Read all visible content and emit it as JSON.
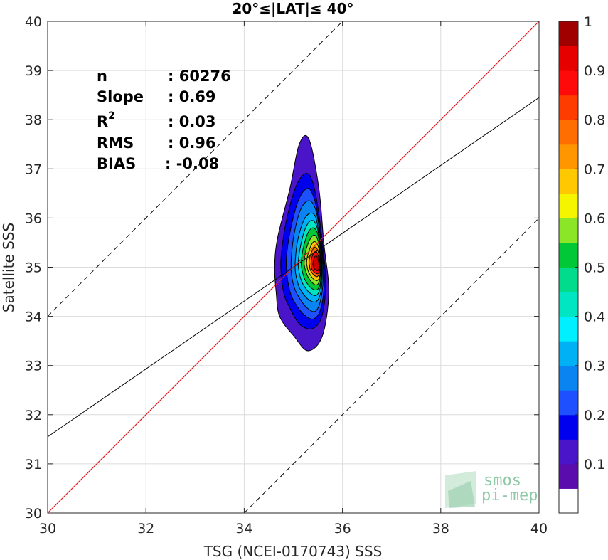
{
  "chart_data": {
    "type": "heatmap",
    "title": "20°≤|LAT|≤ 40°",
    "xlabel": "TSG (NCEI-0170743) SSS",
    "ylabel": "Satellite SSS",
    "xlim": [
      30,
      40
    ],
    "ylim": [
      30,
      40
    ],
    "x_ticks": [
      "30",
      "32",
      "34",
      "36",
      "38",
      "40"
    ],
    "y_ticks": [
      "30",
      "31",
      "32",
      "33",
      "34",
      "35",
      "36",
      "37",
      "38",
      "39",
      "40"
    ],
    "grid": true,
    "density_peak": {
      "x": 35.45,
      "y": 35.1
    },
    "stats": [
      {
        "label": "n",
        "value": ": 60276"
      },
      {
        "label": "Slope",
        "value": ": 0.69"
      },
      {
        "label": "R",
        "sup": "2",
        "value": ": 0.03"
      },
      {
        "label": "RMS",
        "value": ": 0.96"
      },
      {
        "label": "BIAS",
        "value": ": -0.08"
      }
    ],
    "lines": {
      "identity": {
        "slope": 1,
        "intercept": 0,
        "color": "#e41a1c"
      },
      "regression": {
        "slope": 0.69,
        "y_at_30": 31.55,
        "color": "#000000"
      },
      "upper_bound": {
        "offset": 4,
        "style": "dashed",
        "color": "#000000"
      },
      "lower_bound": {
        "offset": -4,
        "style": "dashed",
        "color": "#000000"
      }
    },
    "colorbar": {
      "range": [
        0,
        1
      ],
      "ticks": [
        "0.1",
        "0.2",
        "0.3",
        "0.4",
        "0.5",
        "0.6",
        "0.7",
        "0.8",
        "0.9",
        "1"
      ],
      "levels": [
        {
          "from": 0.0,
          "to": 0.05,
          "color": "#ffffff"
        },
        {
          "from": 0.05,
          "to": 0.1,
          "color": "#5a0cad"
        },
        {
          "from": 0.1,
          "to": 0.15,
          "color": "#4a14c8"
        },
        {
          "from": 0.15,
          "to": 0.2,
          "color": "#0000ee"
        },
        {
          "from": 0.2,
          "to": 0.25,
          "color": "#1e50ff"
        },
        {
          "from": 0.25,
          "to": 0.3,
          "color": "#0a84f0"
        },
        {
          "from": 0.3,
          "to": 0.35,
          "color": "#00b2f5"
        },
        {
          "from": 0.35,
          "to": 0.4,
          "color": "#00f0ff"
        },
        {
          "from": 0.4,
          "to": 0.45,
          "color": "#00e6c3"
        },
        {
          "from": 0.45,
          "to": 0.5,
          "color": "#00dc8c"
        },
        {
          "from": 0.5,
          "to": 0.55,
          "color": "#00c837"
        },
        {
          "from": 0.55,
          "to": 0.6,
          "color": "#8ce628"
        },
        {
          "from": 0.6,
          "to": 0.65,
          "color": "#f5f500"
        },
        {
          "from": 0.65,
          "to": 0.7,
          "color": "#ffc800"
        },
        {
          "from": 0.7,
          "to": 0.75,
          "color": "#ff9600"
        },
        {
          "from": 0.75,
          "to": 0.8,
          "color": "#ff6e00"
        },
        {
          "from": 0.8,
          "to": 0.85,
          "color": "#ff3c00"
        },
        {
          "from": 0.85,
          "to": 0.9,
          "color": "#ff0a0a"
        },
        {
          "from": 0.9,
          "to": 0.95,
          "color": "#e60000"
        },
        {
          "from": 0.95,
          "to": 1.0,
          "color": "#a00000"
        }
      ]
    },
    "contours": [
      {
        "level": 0.05,
        "color": "#4a14c8",
        "x": [
          34.72,
          35.01,
          35.3,
          35.59,
          35.72,
          35.62,
          35.52,
          35.32,
          35.12,
          34.93,
          34.68,
          34.62,
          34.65
        ],
        "y": [
          34.0,
          33.6,
          33.3,
          33.6,
          34.5,
          35.5,
          36.6,
          37.6,
          37.5,
          36.6,
          35.6,
          35.0,
          34.5
        ]
      },
      {
        "level": 0.1,
        "color": "#0000ee",
        "x": [
          34.89,
          35.12,
          35.38,
          35.58,
          35.66,
          35.58,
          35.45,
          35.3,
          35.08,
          34.87,
          34.76,
          34.75,
          34.8
        ],
        "y": [
          34.25,
          33.85,
          33.75,
          34.0,
          34.7,
          35.6,
          36.5,
          36.9,
          36.7,
          36.0,
          35.3,
          34.9,
          34.5
        ]
      },
      {
        "level": 0.15,
        "color": "#1e50ff",
        "x": [
          34.99,
          35.2,
          35.42,
          35.57,
          35.63,
          35.56,
          35.45,
          35.31,
          35.12,
          34.95,
          34.86,
          34.87,
          34.92
        ],
        "y": [
          34.35,
          34.05,
          33.95,
          34.2,
          34.8,
          35.6,
          36.3,
          36.6,
          36.4,
          35.8,
          35.2,
          34.85,
          34.55
        ]
      },
      {
        "level": 0.2,
        "color": "#0a84f0",
        "x": [
          35.08,
          35.25,
          35.44,
          35.56,
          35.61,
          35.55,
          35.46,
          35.33,
          35.16,
          35.02,
          34.96,
          34.96,
          35.0
        ],
        "y": [
          34.45,
          34.2,
          34.1,
          34.35,
          34.9,
          35.6,
          36.15,
          36.35,
          36.2,
          35.7,
          35.2,
          34.9,
          34.65
        ]
      },
      {
        "level": 0.3,
        "color": "#00b2f5",
        "x": [
          35.14,
          35.3,
          35.46,
          35.56,
          35.59,
          35.54,
          35.46,
          35.35,
          35.21,
          35.09,
          35.04,
          35.04,
          35.08
        ],
        "y": [
          34.55,
          34.35,
          34.3,
          34.5,
          35.0,
          35.55,
          36.0,
          36.1,
          35.95,
          35.55,
          35.15,
          34.92,
          34.72
        ]
      },
      {
        "level": 0.35,
        "color": "#00e6c3",
        "x": [
          35.2,
          35.33,
          35.47,
          35.55,
          35.58,
          35.54,
          35.47,
          35.37,
          35.25,
          35.15,
          35.1,
          35.11,
          35.14
        ],
        "y": [
          34.65,
          34.48,
          34.43,
          34.6,
          35.03,
          35.5,
          35.85,
          35.95,
          35.8,
          35.45,
          35.1,
          34.95,
          34.8
        ]
      },
      {
        "level": 0.45,
        "color": "#00c837",
        "x": [
          35.25,
          35.36,
          35.48,
          35.55,
          35.57,
          35.54,
          35.48,
          35.39,
          35.29,
          35.2,
          35.16,
          35.17,
          35.2
        ],
        "y": [
          34.72,
          34.58,
          34.54,
          34.68,
          35.05,
          35.45,
          35.72,
          35.8,
          35.68,
          35.38,
          35.1,
          34.98,
          34.85
        ]
      },
      {
        "level": 0.55,
        "color": "#8ce628",
        "x": [
          35.3,
          35.39,
          35.48,
          35.54,
          35.56,
          35.53,
          35.48,
          35.41,
          35.33,
          35.25,
          35.22,
          35.23,
          35.26
        ],
        "y": [
          34.8,
          34.68,
          34.64,
          34.76,
          35.07,
          35.4,
          35.6,
          35.65,
          35.55,
          35.32,
          35.1,
          35.0,
          34.9
        ]
      },
      {
        "level": 0.65,
        "color": "#ffc800",
        "x": [
          35.34,
          35.41,
          35.49,
          35.54,
          35.55,
          35.53,
          35.48,
          35.42,
          35.36,
          35.3,
          35.27,
          35.28,
          35.3
        ],
        "y": [
          34.85,
          34.76,
          34.73,
          34.83,
          35.08,
          35.33,
          35.48,
          35.52,
          35.44,
          35.27,
          35.1,
          35.02,
          34.93
        ]
      },
      {
        "level": 0.75,
        "color": "#ff6e00",
        "x": [
          35.37,
          35.43,
          35.49,
          35.53,
          35.54,
          35.52,
          35.48,
          35.44,
          35.39,
          35.34,
          35.32,
          35.33,
          35.34
        ],
        "y": [
          34.9,
          34.83,
          34.81,
          34.89,
          35.08,
          35.27,
          35.38,
          35.41,
          35.35,
          35.22,
          35.1,
          35.03,
          34.96
        ]
      },
      {
        "level": 0.85,
        "color": "#ff0a0a",
        "x": [
          35.39,
          35.45,
          35.5,
          35.53,
          35.53,
          35.51,
          35.48,
          35.45,
          35.41,
          35.37,
          35.36,
          35.36,
          35.37
        ],
        "y": [
          34.94,
          34.88,
          34.87,
          34.94,
          35.08,
          35.22,
          35.3,
          35.32,
          35.28,
          35.18,
          35.09,
          35.04,
          34.98
        ]
      },
      {
        "level": 0.95,
        "color": "#c80000",
        "x": [
          35.42,
          35.46,
          35.5,
          35.52,
          35.52,
          35.5,
          35.48,
          35.45,
          35.43,
          35.41,
          35.4,
          35.4,
          35.41
        ],
        "y": [
          34.98,
          34.94,
          34.93,
          34.98,
          35.08,
          35.17,
          35.22,
          35.23,
          35.2,
          35.14,
          35.08,
          35.04,
          35.0
        ]
      }
    ]
  },
  "logo": {
    "line1": "smos",
    "line2": "pi-mep"
  }
}
